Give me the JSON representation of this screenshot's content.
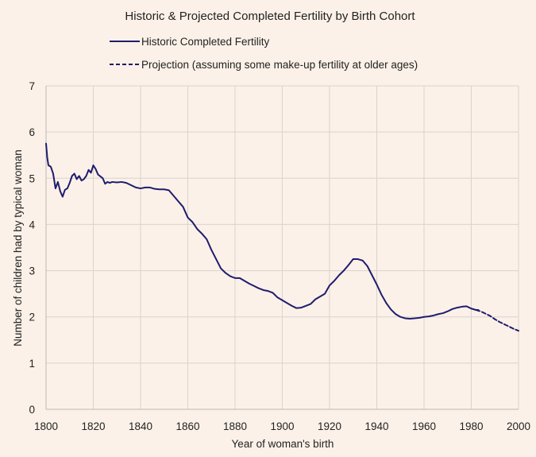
{
  "chart_data": {
    "type": "line",
    "title": "Historic & Projected Completed Fertility by Birth Cohort",
    "xlabel": "Year of woman's birth",
    "ylabel": "Number of children had by typical woman",
    "xlim": [
      1800,
      2000
    ],
    "ylim": [
      0,
      7
    ],
    "x_ticks": [
      1800,
      1820,
      1840,
      1860,
      1880,
      1900,
      1920,
      1940,
      1960,
      1980,
      2000
    ],
    "y_ticks": [
      0,
      1,
      2,
      3,
      4,
      5,
      6,
      7
    ],
    "grid": true,
    "legend_position": "top",
    "colors": {
      "line": "#1f1c6e",
      "grid": "#d9d3cf",
      "background": "#fbf1e8"
    },
    "series": [
      {
        "name": "Historic Completed Fertility",
        "style": "solid",
        "x": [
          1800,
          1800.5,
          1801,
          1802,
          1803,
          1804,
          1805,
          1806,
          1807,
          1808,
          1809,
          1810,
          1811,
          1812,
          1813,
          1814,
          1815,
          1816,
          1817,
          1818,
          1819,
          1820,
          1821,
          1822,
          1823,
          1824,
          1825,
          1826,
          1827,
          1828,
          1830,
          1832,
          1834,
          1836,
          1838,
          1840,
          1842,
          1844,
          1846,
          1848,
          1850,
          1852,
          1854,
          1856,
          1858,
          1860,
          1862,
          1864,
          1866,
          1868,
          1870,
          1872,
          1874,
          1876,
          1878,
          1880,
          1882,
          1884,
          1886,
          1888,
          1890,
          1892,
          1894,
          1896,
          1898,
          1900,
          1902,
          1904,
          1906,
          1908,
          1910,
          1912,
          1914,
          1916,
          1918,
          1920,
          1922,
          1924,
          1926,
          1928,
          1930,
          1932,
          1934,
          1936,
          1938,
          1940,
          1942,
          1944,
          1946,
          1948,
          1950,
          1952,
          1954,
          1956,
          1958,
          1960,
          1962,
          1964,
          1966,
          1968,
          1970,
          1972,
          1974,
          1976,
          1978,
          1980,
          1982,
          1983
        ],
        "y": [
          5.75,
          5.45,
          5.28,
          5.25,
          5.1,
          4.78,
          4.92,
          4.72,
          4.6,
          4.75,
          4.78,
          4.9,
          5.05,
          5.1,
          4.98,
          5.05,
          4.95,
          4.98,
          5.05,
          5.18,
          5.12,
          5.28,
          5.2,
          5.08,
          5.04,
          5.0,
          4.88,
          4.92,
          4.9,
          4.92,
          4.91,
          4.92,
          4.9,
          4.85,
          4.8,
          4.78,
          4.8,
          4.8,
          4.77,
          4.76,
          4.76,
          4.74,
          4.62,
          4.5,
          4.38,
          4.15,
          4.05,
          3.9,
          3.8,
          3.68,
          3.45,
          3.25,
          3.05,
          2.95,
          2.88,
          2.84,
          2.84,
          2.78,
          2.72,
          2.67,
          2.62,
          2.58,
          2.56,
          2.52,
          2.42,
          2.36,
          2.3,
          2.24,
          2.19,
          2.2,
          2.24,
          2.28,
          2.38,
          2.44,
          2.5,
          2.68,
          2.78,
          2.9,
          3.0,
          3.12,
          3.25,
          3.25,
          3.22,
          3.1,
          2.9,
          2.7,
          2.48,
          2.3,
          2.16,
          2.06,
          2.0,
          1.97,
          1.96,
          1.97,
          1.98,
          2.0,
          2.01,
          2.03,
          2.06,
          2.08,
          2.12,
          2.17,
          2.2,
          2.22,
          2.23,
          2.18,
          2.15,
          2.15
        ]
      },
      {
        "name": "Projection (assuming some make-up fertility at older ages)",
        "style": "dashed",
        "x": [
          1982,
          1984,
          1986,
          1988,
          1990,
          1992,
          1994,
          1996,
          1998,
          2000
        ],
        "y": [
          2.15,
          2.12,
          2.07,
          2.02,
          1.95,
          1.89,
          1.84,
          1.79,
          1.74,
          1.7
        ]
      }
    ]
  }
}
